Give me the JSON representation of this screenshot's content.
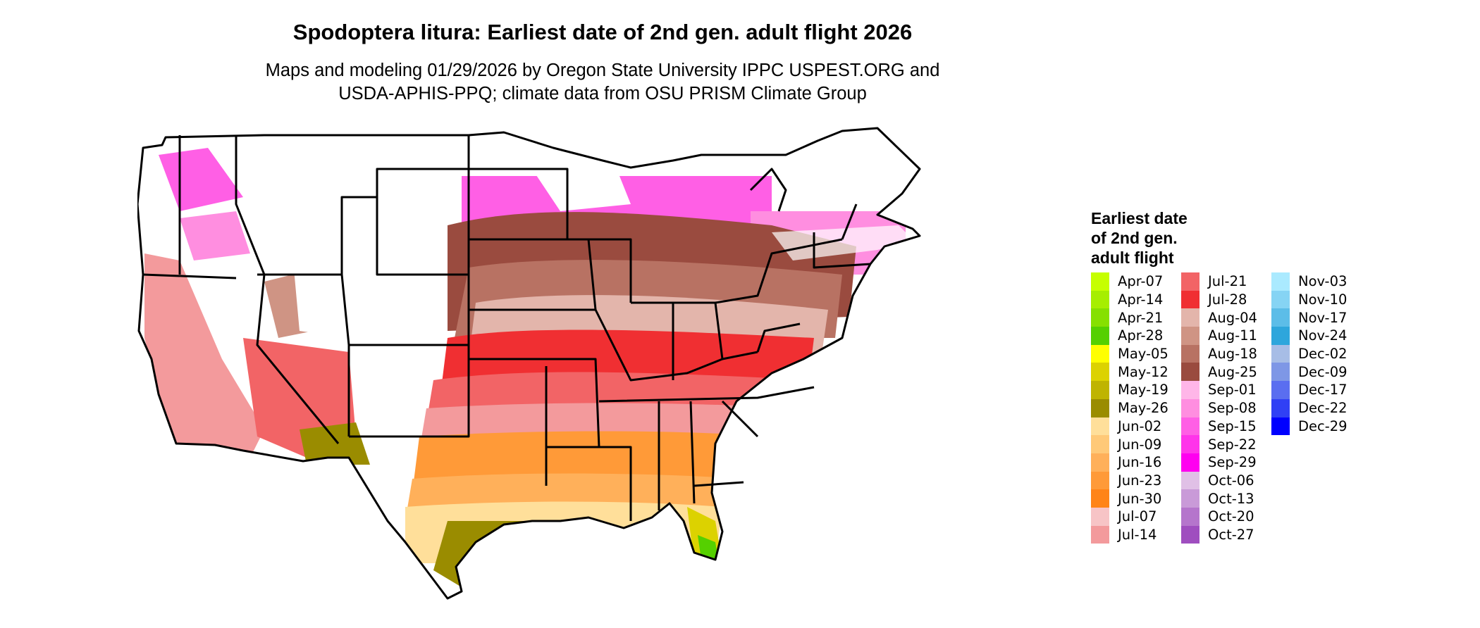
{
  "title": "Spodoptera litura: Earliest date of 2nd gen. adult flight 2026",
  "subtitle_line1": "Maps and modeling 01/29/2026 by Oregon State University IPPC USPEST.ORG and",
  "subtitle_line2": "USDA-APHIS-PPQ; climate data from OSU PRISM Climate Group",
  "legend": {
    "title_lines": [
      "Earliest date",
      "of 2nd gen.",
      "adult flight"
    ],
    "columns": [
      [
        {
          "label": "Apr-07",
          "color": "#c6ff00"
        },
        {
          "label": "Apr-14",
          "color": "#a6ee00"
        },
        {
          "label": "Apr-21",
          "color": "#86e000"
        },
        {
          "label": "Apr-28",
          "color": "#55d000"
        },
        {
          "label": "May-05",
          "color": "#ffff00"
        },
        {
          "label": "May-12",
          "color": "#dcd200"
        },
        {
          "label": "May-19",
          "color": "#bfb400"
        },
        {
          "label": "May-26",
          "color": "#9a8c00"
        },
        {
          "label": "Jun-02",
          "color": "#ffdf9a"
        },
        {
          "label": "Jun-09",
          "color": "#ffc978"
        },
        {
          "label": "Jun-16",
          "color": "#ffb05a"
        },
        {
          "label": "Jun-23",
          "color": "#ff9a38"
        },
        {
          "label": "Jun-30",
          "color": "#ff8418"
        },
        {
          "label": "Jul-07",
          "color": "#f7c4c6"
        },
        {
          "label": "Jul-14",
          "color": "#f39a9c"
        }
      ],
      [
        {
          "label": "Jul-21",
          "color": "#f26466"
        },
        {
          "label": "Jul-28",
          "color": "#f02f32"
        },
        {
          "label": "Aug-04",
          "color": "#e3b5ab"
        },
        {
          "label": "Aug-11",
          "color": "#cf9484"
        },
        {
          "label": "Aug-18",
          "color": "#b87263"
        },
        {
          "label": "Aug-25",
          "color": "#9a4b3f"
        },
        {
          "label": "Sep-01",
          "color": "#ffb6e8"
        },
        {
          "label": "Sep-08",
          "color": "#ff8ee0"
        },
        {
          "label": "Sep-15",
          "color": "#ff5fe5"
        },
        {
          "label": "Sep-22",
          "color": "#ff34ea"
        },
        {
          "label": "Sep-29",
          "color": "#ff00f0"
        },
        {
          "label": "Oct-06",
          "color": "#e0c0e6"
        },
        {
          "label": "Oct-13",
          "color": "#c99ad8"
        },
        {
          "label": "Oct-20",
          "color": "#b575cc"
        },
        {
          "label": "Oct-27",
          "color": "#9f4ebf"
        }
      ],
      [
        {
          "label": "Nov-03",
          "color": "#aaeaff"
        },
        {
          "label": "Nov-10",
          "color": "#86d4f4"
        },
        {
          "label": "Nov-17",
          "color": "#5cbde8"
        },
        {
          "label": "Nov-24",
          "color": "#2ea6dc"
        },
        {
          "label": "Dec-02",
          "color": "#a7bde6"
        },
        {
          "label": "Dec-09",
          "color": "#7e97e6"
        },
        {
          "label": "Dec-17",
          "color": "#5a6ef0"
        },
        {
          "label": "Dec-22",
          "color": "#3040f5"
        },
        {
          "label": "Dec-29",
          "color": "#0000ff"
        }
      ]
    ]
  },
  "map_colors": {
    "outline": "#000000",
    "no_data": "#ffffff"
  }
}
